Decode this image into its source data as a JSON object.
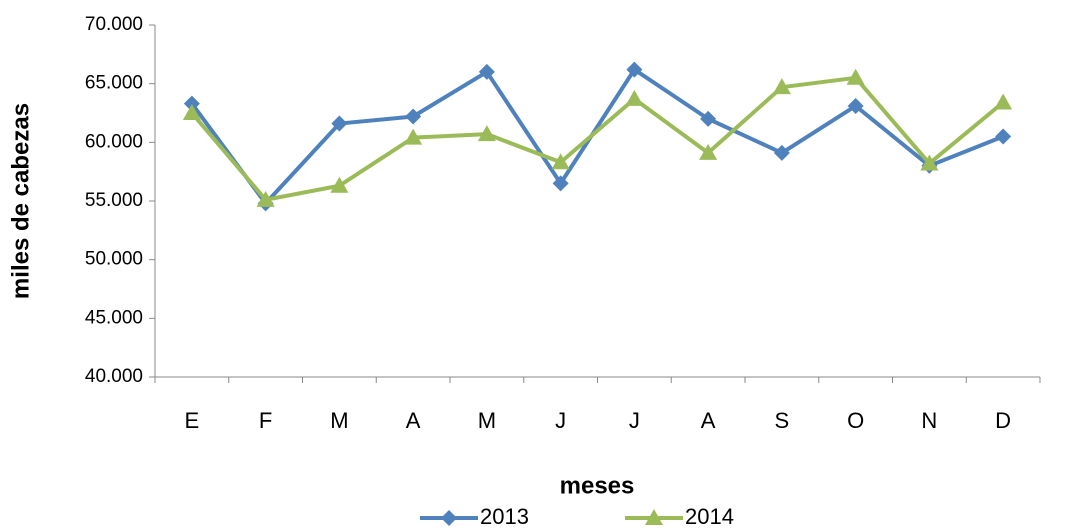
{
  "chart_data": {
    "type": "line",
    "x_label": "meses",
    "y_label": "miles de cabezas",
    "categories": [
      "E",
      "F",
      "M",
      "A",
      "M",
      "J",
      "J",
      "A",
      "S",
      "O",
      "N",
      "D"
    ],
    "series": [
      {
        "name": "2013",
        "color": "#4f81bd",
        "marker": "diamond",
        "values": [
          63300,
          54800,
          61600,
          62200,
          66000,
          56500,
          66200,
          62000,
          59100,
          63100,
          58000,
          60500
        ]
      },
      {
        "name": "2014",
        "color": "#9bbb59",
        "marker": "triangle",
        "values": [
          62500,
          55100,
          56300,
          60400,
          60700,
          58300,
          63700,
          59100,
          64700,
          65500,
          58200,
          63400
        ]
      }
    ],
    "ylim": [
      40000,
      70000
    ],
    "yticks": [
      {
        "value": 40000,
        "label": "40.000"
      },
      {
        "value": 45000,
        "label": "45.000"
      },
      {
        "value": 50000,
        "label": "50.000"
      },
      {
        "value": 55000,
        "label": "55.000"
      },
      {
        "value": 60000,
        "label": "60.000"
      },
      {
        "value": 65000,
        "label": "65.000"
      },
      {
        "value": 70000,
        "label": "70.000"
      }
    ],
    "legend": "bottom"
  }
}
